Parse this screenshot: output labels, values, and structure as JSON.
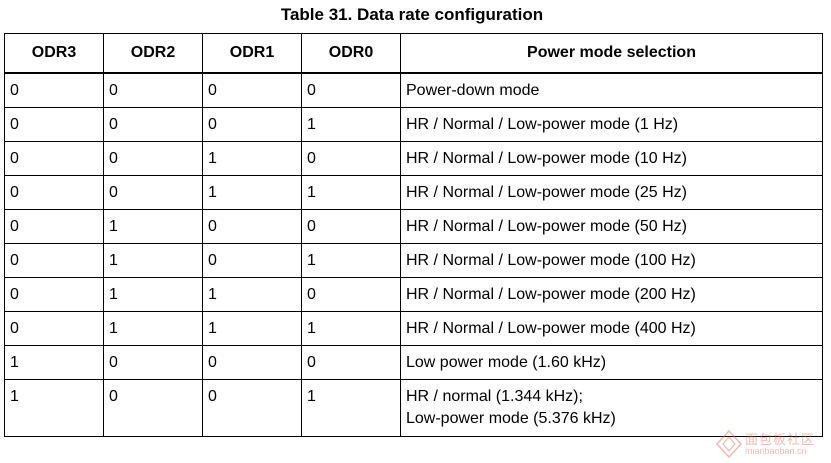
{
  "caption": "Table 31. Data rate configuration",
  "table": {
    "headers": [
      "ODR3",
      "ODR2",
      "ODR1",
      "ODR0",
      "Power mode selection"
    ],
    "rows": [
      [
        "0",
        "0",
        "0",
        "0",
        "Power-down mode"
      ],
      [
        "0",
        "0",
        "0",
        "1",
        "HR / Normal / Low-power mode (1 Hz)"
      ],
      [
        "0",
        "0",
        "1",
        "0",
        "HR / Normal / Low-power mode (10 Hz)"
      ],
      [
        "0",
        "0",
        "1",
        "1",
        "HR / Normal / Low-power mode (25 Hz)"
      ],
      [
        "0",
        "1",
        "0",
        "0",
        "HR / Normal / Low-power mode (50 Hz)"
      ],
      [
        "0",
        "1",
        "0",
        "1",
        "HR / Normal / Low-power mode (100 Hz)"
      ],
      [
        "0",
        "1",
        "1",
        "0",
        "HR / Normal / Low-power mode (200 Hz)"
      ],
      [
        "0",
        "1",
        "1",
        "1",
        "HR / Normal / Low-power mode (400 Hz)"
      ],
      [
        "1",
        "0",
        "0",
        "0",
        "Low power mode (1.60 kHz)"
      ],
      [
        "1",
        "0",
        "0",
        "1",
        "HR / normal (1.344 kHz);"
      ]
    ],
    "last_row_second_line": "Low-power mode (5.376 kHz)"
  },
  "watermark": {
    "text": "面包板社区",
    "sub": "mianbaoban.cn",
    "color": "#d46a5a"
  }
}
